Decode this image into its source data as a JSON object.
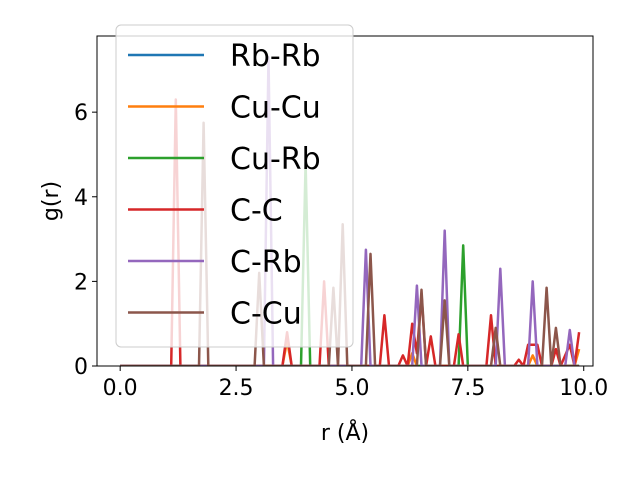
{
  "chart_data": {
    "type": "line",
    "title": "",
    "xlabel": "r (Å)",
    "ylabel": "g(r)",
    "xlim": [
      -0.5,
      10.2
    ],
    "ylim": [
      0,
      7.8
    ],
    "xticks": [
      0.0,
      2.5,
      5.0,
      7.5,
      10.0
    ],
    "xtick_labels": [
      "0.0",
      "2.5",
      "5.0",
      "7.5",
      "10.0"
    ],
    "yticks": [
      0,
      2,
      4,
      6
    ],
    "ytick_labels": [
      "0",
      "2",
      "4",
      "6"
    ],
    "grid": false,
    "legend": {
      "placement": "upper-left",
      "entries": [
        "Rb-Rb",
        "Cu-Cu",
        "Cu-Rb",
        "C-C",
        "C-Rb",
        "C-Cu"
      ]
    },
    "series": [
      {
        "name": "Rb-Rb",
        "color": "#1f77b4",
        "points": [
          [
            0,
            0
          ],
          [
            9.9,
            0
          ]
        ]
      },
      {
        "name": "Cu-Cu",
        "color": "#ff7f0e",
        "points": [
          [
            0,
            0
          ],
          [
            3.5,
            0
          ],
          [
            3.6,
            0.6
          ],
          [
            3.7,
            0
          ],
          [
            6.2,
            0
          ],
          [
            6.3,
            0.3
          ],
          [
            6.4,
            0
          ],
          [
            8.8,
            0
          ],
          [
            8.9,
            0.25
          ],
          [
            9.0,
            0
          ],
          [
            9.8,
            0
          ],
          [
            9.9,
            0.4
          ]
        ]
      },
      {
        "name": "Cu-Rb",
        "color": "#2ca02c",
        "points": [
          [
            0,
            0
          ],
          [
            3.9,
            0
          ],
          [
            4.0,
            4.8
          ],
          [
            4.1,
            0
          ],
          [
            7.3,
            0
          ],
          [
            7.4,
            2.85
          ],
          [
            7.5,
            0
          ],
          [
            9.9,
            0
          ]
        ]
      },
      {
        "name": "C-C",
        "color": "#d62728",
        "points": [
          [
            0,
            0
          ],
          [
            1.1,
            0
          ],
          [
            1.2,
            6.3
          ],
          [
            1.3,
            0
          ],
          [
            3.5,
            0
          ],
          [
            3.6,
            0.8
          ],
          [
            3.7,
            0
          ],
          [
            4.3,
            0
          ],
          [
            4.4,
            2.0
          ],
          [
            4.5,
            0
          ],
          [
            5.6,
            0
          ],
          [
            5.7,
            1.2
          ],
          [
            5.8,
            0
          ],
          [
            6.0,
            0
          ],
          [
            6.1,
            0.25
          ],
          [
            6.2,
            0
          ],
          [
            6.3,
            1.0
          ],
          [
            6.4,
            0.3
          ],
          [
            6.5,
            1.7
          ],
          [
            6.6,
            0
          ],
          [
            6.7,
            0.7
          ],
          [
            6.8,
            0
          ],
          [
            7.2,
            0
          ],
          [
            7.3,
            0.75
          ],
          [
            7.4,
            0
          ],
          [
            7.9,
            0
          ],
          [
            8.0,
            1.2
          ],
          [
            8.1,
            0
          ],
          [
            8.5,
            0
          ],
          [
            8.6,
            0.15
          ],
          [
            8.7,
            0
          ],
          [
            8.8,
            0.5
          ],
          [
            9.0,
            0.5
          ],
          [
            9.1,
            0
          ],
          [
            9.3,
            0
          ],
          [
            9.4,
            0.4
          ],
          [
            9.5,
            0
          ],
          [
            9.7,
            0.5
          ],
          [
            9.8,
            0
          ],
          [
            9.9,
            0.8
          ]
        ]
      },
      {
        "name": "C-Rb",
        "color": "#9467bd",
        "points": [
          [
            0,
            0
          ],
          [
            3.1,
            0
          ],
          [
            3.2,
            7.3
          ],
          [
            3.3,
            0
          ],
          [
            5.2,
            0
          ],
          [
            5.3,
            2.75
          ],
          [
            5.4,
            0
          ],
          [
            6.3,
            0
          ],
          [
            6.4,
            1.9
          ],
          [
            6.5,
            0
          ],
          [
            6.9,
            0
          ],
          [
            7.0,
            3.2
          ],
          [
            7.1,
            0
          ],
          [
            8.1,
            0
          ],
          [
            8.2,
            2.3
          ],
          [
            8.3,
            0
          ],
          [
            8.8,
            0
          ],
          [
            8.9,
            2.0
          ],
          [
            9.0,
            0
          ],
          [
            9.6,
            0
          ],
          [
            9.7,
            0.85
          ],
          [
            9.8,
            0
          ]
        ]
      },
      {
        "name": "C-Cu",
        "color": "#8c564b",
        "points": [
          [
            0,
            0
          ],
          [
            1.7,
            0
          ],
          [
            1.8,
            5.75
          ],
          [
            1.9,
            0
          ],
          [
            2.9,
            0
          ],
          [
            3.0,
            2.2
          ],
          [
            3.1,
            0
          ],
          [
            4.5,
            0
          ],
          [
            4.6,
            1.85
          ],
          [
            4.7,
            0
          ],
          [
            4.8,
            3.35
          ],
          [
            4.9,
            0
          ],
          [
            5.3,
            0
          ],
          [
            5.4,
            2.65
          ],
          [
            5.5,
            0
          ],
          [
            6.4,
            0
          ],
          [
            6.5,
            1.8
          ],
          [
            6.6,
            0
          ],
          [
            6.9,
            0
          ],
          [
            7.0,
            1.55
          ],
          [
            7.1,
            0
          ],
          [
            8.0,
            0
          ],
          [
            8.1,
            0.9
          ],
          [
            8.2,
            0
          ],
          [
            9.1,
            0
          ],
          [
            9.2,
            1.85
          ],
          [
            9.3,
            0
          ],
          [
            9.4,
            0.9
          ],
          [
            9.5,
            0
          ],
          [
            9.9,
            0
          ]
        ]
      }
    ]
  }
}
